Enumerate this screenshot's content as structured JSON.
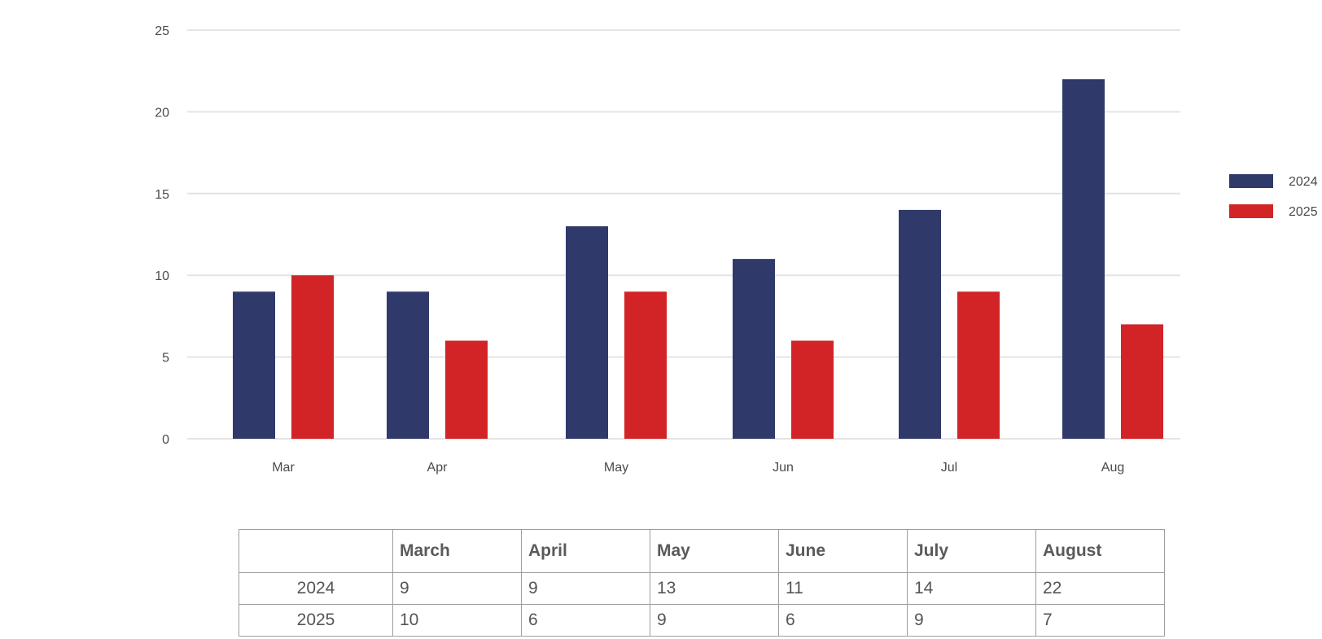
{
  "chart_data": {
    "type": "bar",
    "categories": [
      "Mar",
      "Apr",
      "May",
      "Jun",
      "Jul",
      "Aug"
    ],
    "series": [
      {
        "name": "2024",
        "values": [
          9,
          9,
          13,
          11,
          14,
          22
        ],
        "color": "#2f3a6b"
      },
      {
        "name": "2025",
        "values": [
          10,
          6,
          9,
          6,
          9,
          7
        ],
        "color": "#d22426"
      }
    ],
    "ylim": [
      0,
      25
    ],
    "yticks": [
      0,
      5,
      10,
      15,
      20,
      25
    ],
    "grid": true,
    "legend": "right"
  },
  "table": {
    "headers": [
      "",
      "March",
      "April",
      "May",
      "June",
      "July",
      "August"
    ],
    "rows": [
      {
        "label": "2024",
        "cells": [
          "9",
          "9",
          "13",
          "11",
          "14",
          "22"
        ]
      },
      {
        "label": "2025",
        "cells": [
          "10",
          "6",
          "9",
          "6",
          "9",
          "7"
        ]
      }
    ]
  }
}
